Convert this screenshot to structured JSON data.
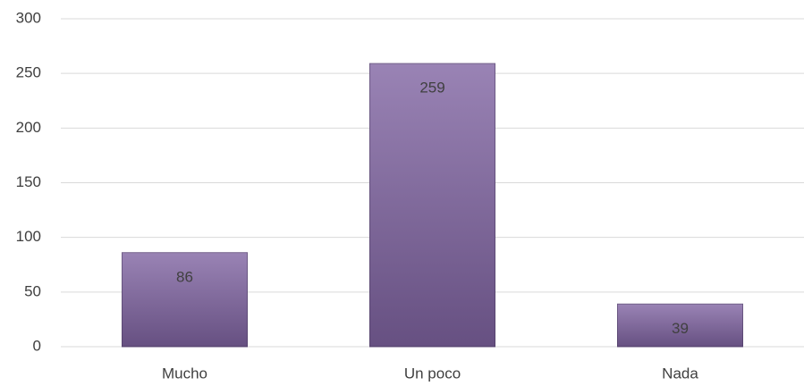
{
  "chart_data": {
    "type": "bar",
    "categories": [
      "Mucho",
      "Un poco",
      "Nada"
    ],
    "values": [
      86,
      259,
      39
    ],
    "color": "#8064a2",
    "ylim": [
      0,
      300
    ],
    "yticks": [
      0,
      50,
      100,
      150,
      200,
      250,
      300
    ],
    "grid": true
  }
}
